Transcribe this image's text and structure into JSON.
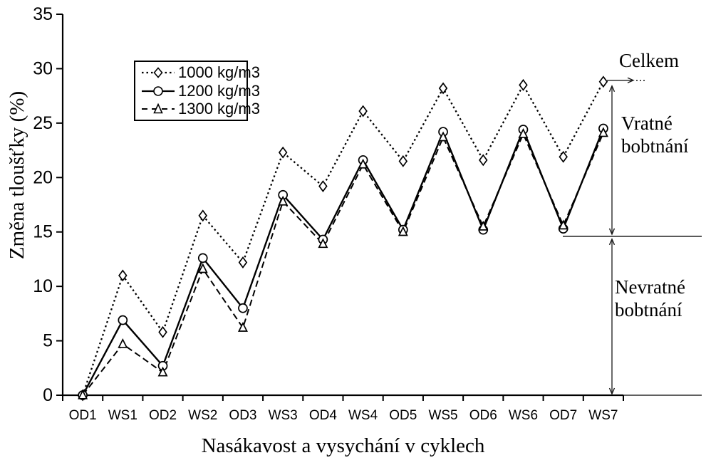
{
  "chart_data": {
    "type": "line",
    "title": "",
    "xlabel": "Nasákavost a vysychání v cyklech",
    "ylabel": "Změna tloušťky (%)",
    "categories": [
      "OD1",
      "WS1",
      "OD2",
      "WS2",
      "OD3",
      "WS3",
      "OD4",
      "WS4",
      "OD5",
      "WS5",
      "OD6",
      "WS6",
      "OD7",
      "WS7"
    ],
    "ylim": [
      0,
      35
    ],
    "ytick_step": 5,
    "grid": false,
    "legend_position": "upper-left-inside",
    "series": [
      {
        "name": "1000 kg/m3",
        "marker": "diamond",
        "line_style": "dotted",
        "values": [
          0,
          11.0,
          5.8,
          16.5,
          12.2,
          22.3,
          19.2,
          26.1,
          21.5,
          28.2,
          21.6,
          28.5,
          21.9,
          28.8
        ]
      },
      {
        "name": "1200 kg/m3",
        "marker": "circle",
        "line_style": "solid",
        "values": [
          0,
          6.9,
          2.7,
          12.6,
          8.0,
          18.4,
          14.3,
          21.6,
          15.2,
          24.2,
          15.2,
          24.4,
          15.3,
          24.5
        ]
      },
      {
        "name": "1300 kg/m3",
        "marker": "triangle",
        "line_style": "dashed",
        "values": [
          0,
          4.7,
          2.1,
          11.6,
          6.2,
          17.8,
          13.9,
          21.2,
          15.0,
          23.7,
          15.5,
          24.0,
          15.6,
          24.1
        ]
      }
    ]
  },
  "annotations": {
    "celkem": {
      "label": "Celkem",
      "dots": "...",
      "level": 28.8
    },
    "vratne": {
      "label": "Vratné\nbobtnání",
      "from_level": 28.8,
      "to_level": 14.6
    },
    "nevratne": {
      "label": "Nevratné\nbobtnání",
      "from_level": 14.6,
      "to_level": 0
    },
    "boundary_level": 14.6
  },
  "colors": {
    "foreground": "#000000",
    "background": "#ffffff",
    "annotation_arrow": "#1a1a1a"
  }
}
